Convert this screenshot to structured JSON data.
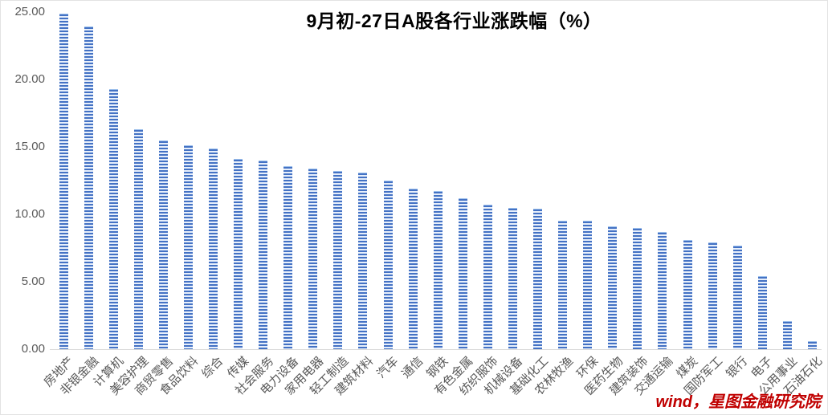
{
  "title": "9月初-27日A股各行业涨跌幅（%）",
  "watermark": "wind，星图金融研究院",
  "colors": {
    "bar_stripe": "#4472C4",
    "bar_stripe_light": "#E7EFFB",
    "axis_text": "#595959",
    "axis_line": "#D9D9D9",
    "title_text": "#000000",
    "watermark_text": "#C00000"
  },
  "y_axis": {
    "tick_labels": [
      "0.00",
      "5.00",
      "10.00",
      "15.00",
      "20.00",
      "25.00"
    ],
    "min": 0,
    "max": 25,
    "step": 5
  },
  "chart_data": {
    "type": "bar",
    "title": "9月初-27日A股各行业涨跌幅（%）",
    "xlabel": "",
    "ylabel": "",
    "ylim": [
      0,
      25
    ],
    "grid": false,
    "legend": "none",
    "bar_fill_pattern": "horizontal-stripes",
    "categories": [
      "房地产",
      "非银金融",
      "计算机",
      "美容护理",
      "商贸零售",
      "食品饮料",
      "综合",
      "传媒",
      "社会服务",
      "电力设备",
      "家用电器",
      "轻工制造",
      "建筑材料",
      "汽车",
      "通信",
      "钢铁",
      "有色金属",
      "纺织服饰",
      "机械设备",
      "基础化工",
      "农林牧渔",
      "环保",
      "医药生物",
      "建筑装饰",
      "交通运输",
      "煤炭",
      "国防军工",
      "银行",
      "电子",
      "公用事业",
      "石油石化"
    ],
    "values": [
      24.9,
      23.9,
      19.3,
      16.3,
      15.5,
      15.1,
      14.9,
      14.1,
      14.0,
      13.6,
      13.4,
      13.2,
      13.1,
      12.5,
      11.9,
      11.7,
      11.2,
      10.7,
      10.5,
      10.4,
      9.5,
      9.5,
      9.1,
      9.0,
      8.7,
      8.1,
      7.9,
      7.7,
      5.4,
      2.1,
      0.6
    ]
  }
}
